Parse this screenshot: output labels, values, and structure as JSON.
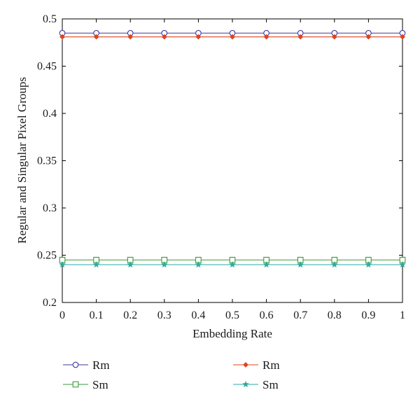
{
  "chart_data": {
    "type": "line",
    "xlabel": "Embedding Rate",
    "ylabel": "Regular and Singular Pixel Groups",
    "xlim": [
      0,
      1
    ],
    "ylim": [
      0.2,
      0.5
    ],
    "x": [
      0,
      0.1,
      0.2,
      0.3,
      0.4,
      0.5,
      0.6,
      0.7,
      0.8,
      0.9,
      1
    ],
    "x_ticks": [
      "0",
      "0.1",
      "0.2",
      "0.3",
      "0.4",
      "0.5",
      "0.6",
      "0.7",
      "0.8",
      "0.9",
      "1"
    ],
    "y_ticks": [
      "0.2",
      "0.25",
      "0.3",
      "0.35",
      "0.4",
      "0.45",
      "0.5"
    ],
    "y_tick_values": [
      0.2,
      0.25,
      0.3,
      0.35,
      0.4,
      0.45,
      0.5
    ],
    "grid": false,
    "legend_placement": "below",
    "series": [
      {
        "name": "Rm",
        "color": "#3b3b9e",
        "marker": "circle",
        "values": [
          0.485,
          0.485,
          0.485,
          0.485,
          0.485,
          0.485,
          0.485,
          0.485,
          0.485,
          0.485,
          0.485
        ]
      },
      {
        "name": "Sm",
        "color": "#3a9a3a",
        "marker": "square",
        "values": [
          0.245,
          0.245,
          0.245,
          0.245,
          0.245,
          0.245,
          0.245,
          0.245,
          0.245,
          0.245,
          0.245
        ]
      },
      {
        "name": "Rm",
        "color": "#e0441b",
        "marker": "diamond",
        "values": [
          0.481,
          0.481,
          0.481,
          0.481,
          0.481,
          0.481,
          0.481,
          0.481,
          0.481,
          0.481,
          0.481
        ]
      },
      {
        "name": "Sm",
        "color": "#2aaaa0",
        "marker": "star",
        "values": [
          0.24,
          0.24,
          0.24,
          0.24,
          0.24,
          0.24,
          0.24,
          0.24,
          0.24,
          0.24,
          0.24
        ]
      }
    ]
  }
}
